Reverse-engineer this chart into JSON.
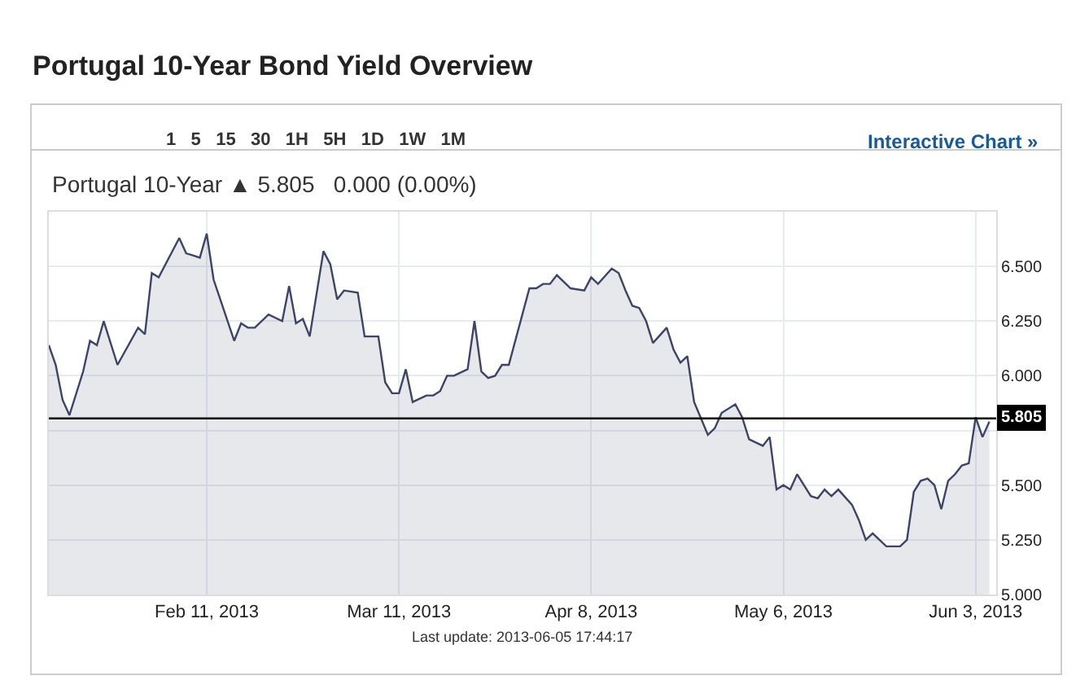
{
  "chart_data": {
    "type": "area",
    "title": "Portugal 10-Year Bond Yield Overview",
    "subtitle": "Portugal 10-Year ▲ 5.805   0.000 (0.00%)",
    "x": [
      "2013-01-19",
      "2013-01-20",
      "2013-01-21",
      "2013-01-22",
      "2013-01-24",
      "2013-01-25",
      "2013-01-26",
      "2013-01-27",
      "2013-01-29",
      "2013-02-01",
      "2013-02-02",
      "2013-02-03",
      "2013-02-04",
      "2013-02-07",
      "2013-02-08",
      "2013-02-09",
      "2013-02-10",
      "2013-02-11",
      "2013-02-12",
      "2013-02-15",
      "2013-02-16",
      "2013-02-17",
      "2013-02-18",
      "2013-02-20",
      "2013-02-22",
      "2013-02-23",
      "2013-02-24",
      "2013-02-25",
      "2013-02-26",
      "2013-02-28",
      "2013-03-01",
      "2013-03-02",
      "2013-03-03",
      "2013-03-05",
      "2013-03-06",
      "2013-03-08",
      "2013-03-09",
      "2013-03-10",
      "2013-03-11",
      "2013-03-12",
      "2013-03-13",
      "2013-03-15",
      "2013-03-16",
      "2013-03-17",
      "2013-03-18",
      "2013-03-19",
      "2013-03-21",
      "2013-03-22",
      "2013-03-23",
      "2013-03-24",
      "2013-03-25",
      "2013-03-26",
      "2013-03-27",
      "2013-03-30",
      "2013-03-31",
      "2013-04-01",
      "2013-04-02",
      "2013-04-03",
      "2013-04-05",
      "2013-04-07",
      "2013-04-08",
      "2013-04-09",
      "2013-04-11",
      "2013-04-12",
      "2013-04-13",
      "2013-04-14",
      "2013-04-15",
      "2013-04-16",
      "2013-04-17",
      "2013-04-19",
      "2013-04-20",
      "2013-04-21",
      "2013-04-22",
      "2013-04-23",
      "2013-04-25",
      "2013-04-26",
      "2013-04-27",
      "2013-04-29",
      "2013-04-30",
      "2013-05-01",
      "2013-05-03",
      "2013-05-04",
      "2013-05-05",
      "2013-05-06",
      "2013-05-07",
      "2013-05-08",
      "2013-05-10",
      "2013-05-11",
      "2013-05-12",
      "2013-05-13",
      "2013-05-14",
      "2013-05-16",
      "2013-05-17",
      "2013-05-18",
      "2013-05-19",
      "2013-05-20",
      "2013-05-21",
      "2013-05-23",
      "2013-05-24",
      "2013-05-25",
      "2013-05-26",
      "2013-05-27",
      "2013-05-28",
      "2013-05-29",
      "2013-05-30",
      "2013-05-31",
      "2013-06-01",
      "2013-06-02",
      "2013-06-03",
      "2013-06-04",
      "2013-06-05"
    ],
    "series": [
      {
        "color": "#3d4466",
        "values": [
          6.14,
          6.05,
          5.89,
          5.82,
          6.02,
          6.16,
          6.14,
          6.25,
          6.05,
          6.22,
          6.19,
          6.47,
          6.45,
          6.63,
          6.56,
          6.55,
          6.54,
          6.65,
          6.44,
          6.16,
          6.24,
          6.22,
          6.22,
          6.28,
          6.25,
          6.41,
          6.24,
          6.26,
          6.18,
          6.57,
          6.51,
          6.35,
          6.39,
          6.38,
          6.18,
          6.18,
          5.97,
          5.92,
          5.92,
          6.03,
          5.88,
          5.91,
          5.91,
          5.93,
          6.0,
          6.0,
          6.03,
          6.25,
          6.02,
          5.99,
          6.0,
          6.05,
          6.05,
          6.4,
          6.4,
          6.42,
          6.42,
          6.46,
          6.4,
          6.39,
          6.45,
          6.42,
          6.49,
          6.47,
          6.39,
          6.32,
          6.31,
          6.25,
          6.15,
          6.22,
          6.12,
          6.06,
          6.09,
          5.88,
          5.73,
          5.76,
          5.83,
          5.87,
          5.81,
          5.71,
          5.68,
          5.72,
          5.48,
          5.5,
          5.48,
          5.55,
          5.45,
          5.44,
          5.48,
          5.45,
          5.48,
          5.41,
          5.34,
          5.25,
          5.28,
          5.25,
          5.22,
          5.22,
          5.25,
          5.47,
          5.52,
          5.53,
          5.5,
          5.39,
          5.52,
          5.55,
          5.59,
          5.6,
          5.81,
          5.72,
          5.79
        ]
      }
    ],
    "xlim": [
      "2013-01-19",
      "2013-06-06"
    ],
    "xticks": [
      {
        "value": "2013-02-11",
        "label": "Feb 11, 2013"
      },
      {
        "value": "2013-03-11",
        "label": "Mar 11, 2013"
      },
      {
        "value": "2013-04-08",
        "label": "Apr 8, 2013"
      },
      {
        "value": "2013-05-06",
        "label": "May 6, 2013"
      },
      {
        "value": "2013-06-03",
        "label": "Jun 3, 2013"
      }
    ],
    "ylim": [
      5.0,
      6.75
    ],
    "yticks": [
      {
        "value": 5.0,
        "label": "5.000"
      },
      {
        "value": 5.25,
        "label": "5.250"
      },
      {
        "value": 5.5,
        "label": "5.500"
      },
      {
        "value": 5.75,
        "label": null
      },
      {
        "value": 6.0,
        "label": "6.000"
      },
      {
        "value": 6.25,
        "label": "6.250"
      },
      {
        "value": 6.5,
        "label": "6.500"
      }
    ],
    "ref_lines": [
      {
        "axis": "y",
        "value": 5.805,
        "label": "5.805",
        "color": "#000000"
      }
    ],
    "grid": true,
    "marker": "none",
    "line_style": "solid",
    "annotations": [
      "1   5   15   30   1H   5H   1D   1W   1M",
      "Interactive Chart »",
      "Last update: 2013-06-05 17:44:17"
    ]
  }
}
